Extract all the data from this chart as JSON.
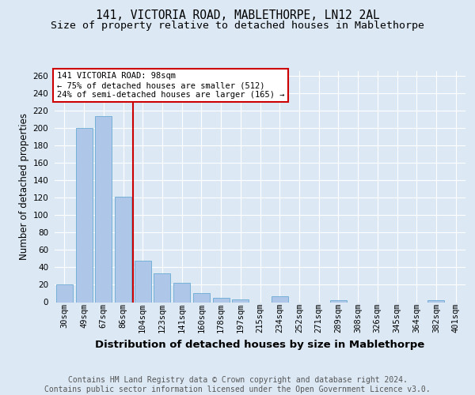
{
  "title": "141, VICTORIA ROAD, MABLETHORPE, LN12 2AL",
  "subtitle": "Size of property relative to detached houses in Mablethorpe",
  "xlabel": "Distribution of detached houses by size in Mablethorpe",
  "ylabel": "Number of detached properties",
  "categories": [
    "30sqm",
    "49sqm",
    "67sqm",
    "86sqm",
    "104sqm",
    "123sqm",
    "141sqm",
    "160sqm",
    "178sqm",
    "197sqm",
    "215sqm",
    "234sqm",
    "252sqm",
    "271sqm",
    "289sqm",
    "308sqm",
    "326sqm",
    "345sqm",
    "364sqm",
    "382sqm",
    "401sqm"
  ],
  "values": [
    20,
    200,
    213,
    121,
    48,
    33,
    22,
    10,
    5,
    3,
    0,
    7,
    0,
    0,
    2,
    0,
    0,
    0,
    0,
    2,
    0
  ],
  "bar_color": "#aec6e8",
  "bar_edge_color": "#6aaad4",
  "vline_x": 3.5,
  "vline_color": "#cc0000",
  "annotation_line1": "141 VICTORIA ROAD: 98sqm",
  "annotation_line2": "← 75% of detached houses are smaller (512)",
  "annotation_line3": "24% of semi-detached houses are larger (165) →",
  "ann_box_fc": "#ffffff",
  "ann_box_ec": "#cc0000",
  "ylim": [
    0,
    265
  ],
  "yticks": [
    0,
    20,
    40,
    60,
    80,
    100,
    120,
    140,
    160,
    180,
    200,
    220,
    240,
    260
  ],
  "bg_color": "#dce9f5",
  "footer": "Contains HM Land Registry data © Crown copyright and database right 2024.\nContains public sector information licensed under the Open Government Licence v3.0.",
  "title_fontsize": 10.5,
  "subtitle_fontsize": 9.5,
  "xlabel_fontsize": 9.5,
  "ylabel_fontsize": 8.5,
  "footer_fontsize": 7,
  "tick_fontsize": 7.5,
  "ann_fontsize": 7.5
}
